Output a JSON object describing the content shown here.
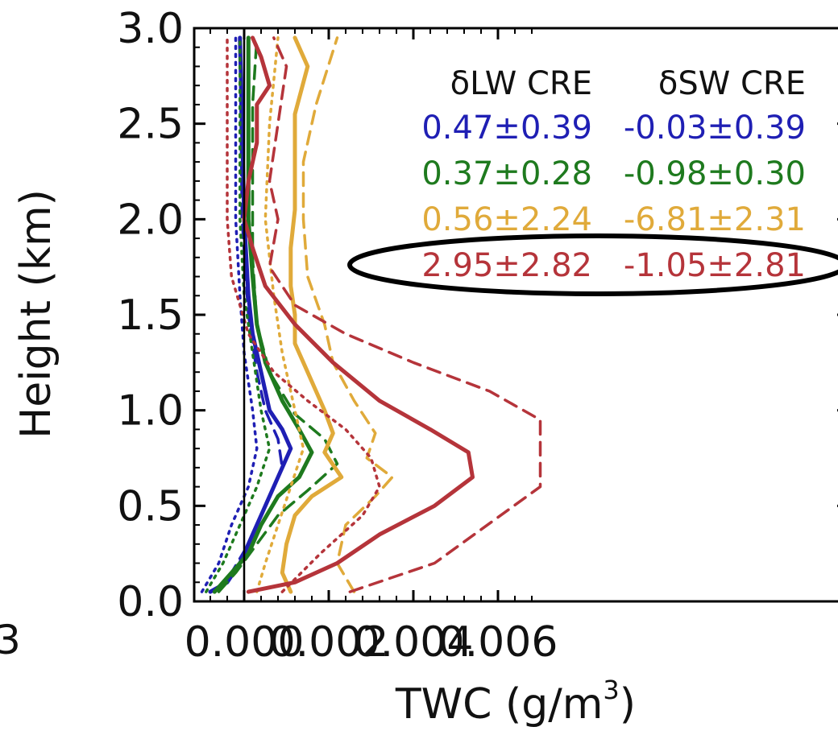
{
  "chart_data": {
    "type": "line",
    "xlabel": "TWC (g/m",
    "xlabel_sup": "3",
    "xlabel_tail": ")",
    "ylabel": "Height (km)",
    "xlim": [
      -0.0012,
      0.007
    ],
    "ylim": [
      0.0,
      3.0
    ],
    "x_ticks": [
      0.0,
      0.002,
      0.004,
      0.006
    ],
    "x_tick_labels": [
      "0.000",
      "0.002",
      "0.004",
      "0.006"
    ],
    "y_ticks": [
      0.0,
      0.5,
      1.0,
      1.5,
      2.0,
      2.5,
      3.0
    ],
    "y_tick_labels": [
      "0.0",
      "0.5",
      "1.0",
      "1.5",
      "2.0",
      "2.5",
      "3.0"
    ],
    "edge_label": "3",
    "grid": false,
    "zero_line": true,
    "table": {
      "headers": [
        "δLW CRE",
        "δSW CRE"
      ],
      "rows": [
        {
          "lw": "0.47±0.39",
          "sw": "-0.03±0.39",
          "color": "#1f1fb4"
        },
        {
          "lw": "0.37±0.28",
          "sw": "-0.98±0.30",
          "color": "#1e7a1e"
        },
        {
          "lw": "0.56±2.24",
          "sw": "-6.81±2.31",
          "color": "#e0aa3a"
        },
        {
          "lw": "2.95±2.82",
          "sw": "-1.05±2.81",
          "color": "#b5343a"
        }
      ],
      "highlight_row": 3
    },
    "series": [
      {
        "color": "#1f1fb4",
        "style": "solid",
        "points": [
          [
            -0.0008,
            0.05
          ],
          [
            -0.0004,
            0.1
          ],
          [
            -0.0001,
            0.2
          ],
          [
            0.0002,
            0.35
          ],
          [
            0.0005,
            0.5
          ],
          [
            0.0008,
            0.65
          ],
          [
            0.0011,
            0.8
          ],
          [
            0.0009,
            0.9
          ],
          [
            0.0006,
            1.0
          ],
          [
            0.0004,
            1.2
          ],
          [
            0.0002,
            1.4
          ],
          [
            0.0001,
            1.6
          ],
          [
            0.0,
            2.0
          ],
          [
            -5e-05,
            2.5
          ],
          [
            -0.0001,
            2.95
          ]
        ]
      },
      {
        "color": "#1f1fb4",
        "style": "dashed",
        "points": [
          [
            -0.0007,
            0.05
          ],
          [
            -0.0003,
            0.15
          ],
          [
            0.0001,
            0.3
          ],
          [
            0.0004,
            0.45
          ],
          [
            0.0007,
            0.6
          ],
          [
            0.0009,
            0.7
          ],
          [
            0.0008,
            0.85
          ],
          [
            0.0005,
            1.0
          ],
          [
            0.0003,
            1.2
          ],
          [
            0.0001,
            1.5
          ],
          [
            -5e-05,
            2.0
          ],
          [
            -0.0001,
            2.95
          ]
        ]
      },
      {
        "color": "#1f1fb4",
        "style": "dotted",
        "points": [
          [
            -0.001,
            0.05
          ],
          [
            -0.0006,
            0.2
          ],
          [
            -0.0003,
            0.4
          ],
          [
            0.0001,
            0.6
          ],
          [
            0.0003,
            0.8
          ],
          [
            0.0002,
            1.0
          ],
          [
            0.0,
            1.3
          ],
          [
            -0.0001,
            1.6
          ],
          [
            -0.0002,
            2.0
          ],
          [
            -0.0002,
            2.95
          ]
        ]
      },
      {
        "color": "#1e7a1e",
        "style": "solid",
        "points": [
          [
            -0.0007,
            0.05
          ],
          [
            -0.0003,
            0.15
          ],
          [
            0.0001,
            0.25
          ],
          [
            0.0004,
            0.4
          ],
          [
            0.0008,
            0.55
          ],
          [
            0.0013,
            0.65
          ],
          [
            0.0016,
            0.78
          ],
          [
            0.0013,
            0.9
          ],
          [
            0.0009,
            1.05
          ],
          [
            0.0005,
            1.25
          ],
          [
            0.0003,
            1.45
          ],
          [
            0.0002,
            1.7
          ],
          [
            0.0001,
            2.0
          ],
          [
            0.0001,
            2.5
          ],
          [
            0.0001,
            2.95
          ]
        ]
      },
      {
        "color": "#1e7a1e",
        "style": "dashed",
        "points": [
          [
            -0.0006,
            0.05
          ],
          [
            -0.0002,
            0.15
          ],
          [
            0.0003,
            0.3
          ],
          [
            0.0008,
            0.45
          ],
          [
            0.0015,
            0.58
          ],
          [
            0.0022,
            0.72
          ],
          [
            0.0019,
            0.85
          ],
          [
            0.0012,
            0.98
          ],
          [
            0.0006,
            1.2
          ],
          [
            0.0003,
            1.45
          ],
          [
            0.0002,
            1.8
          ],
          [
            0.0002,
            2.2
          ],
          [
            0.0002,
            2.6
          ],
          [
            0.0003,
            2.95
          ]
        ]
      },
      {
        "color": "#1e7a1e",
        "style": "dotted",
        "points": [
          [
            -0.0009,
            0.05
          ],
          [
            -0.0005,
            0.2
          ],
          [
            -0.0001,
            0.4
          ],
          [
            0.0003,
            0.6
          ],
          [
            0.0006,
            0.8
          ],
          [
            0.0004,
            1.0
          ],
          [
            0.0002,
            1.3
          ],
          [
            0.0,
            1.6
          ],
          [
            -0.0001,
            2.0
          ],
          [
            -0.0001,
            2.95
          ]
        ]
      },
      {
        "color": "#e0aa3a",
        "style": "solid",
        "points": [
          [
            0.0011,
            0.05
          ],
          [
            0.0009,
            0.15
          ],
          [
            0.001,
            0.3
          ],
          [
            0.0012,
            0.45
          ],
          [
            0.0016,
            0.55
          ],
          [
            0.0023,
            0.65
          ],
          [
            0.0019,
            0.78
          ],
          [
            0.0021,
            0.88
          ],
          [
            0.0019,
            1.0
          ],
          [
            0.0015,
            1.2
          ],
          [
            0.0012,
            1.35
          ],
          [
            0.0012,
            1.5
          ],
          [
            0.0011,
            1.65
          ],
          [
            0.0011,
            1.85
          ],
          [
            0.0012,
            2.05
          ],
          [
            0.0012,
            2.3
          ],
          [
            0.0012,
            2.55
          ],
          [
            0.0015,
            2.8
          ],
          [
            0.0012,
            2.95
          ]
        ]
      },
      {
        "color": "#e0aa3a",
        "style": "dashed",
        "points": [
          [
            0.0026,
            0.05
          ],
          [
            0.0022,
            0.2
          ],
          [
            0.0024,
            0.4
          ],
          [
            0.0031,
            0.55
          ],
          [
            0.0035,
            0.65
          ],
          [
            0.0029,
            0.75
          ],
          [
            0.0031,
            0.88
          ],
          [
            0.0026,
            1.05
          ],
          [
            0.0021,
            1.25
          ],
          [
            0.0019,
            1.45
          ],
          [
            0.0015,
            1.7
          ],
          [
            0.0014,
            2.0
          ],
          [
            0.0014,
            2.3
          ],
          [
            0.0017,
            2.6
          ],
          [
            0.0022,
            2.95
          ]
        ]
      },
      {
        "color": "#e0aa3a",
        "style": "dotted",
        "points": [
          [
            0.0003,
            0.05
          ],
          [
            0.0005,
            0.2
          ],
          [
            0.0008,
            0.4
          ],
          [
            0.0011,
            0.6
          ],
          [
            0.0014,
            0.8
          ],
          [
            0.0012,
            1.0
          ],
          [
            0.0009,
            1.3
          ],
          [
            0.0007,
            1.6
          ],
          [
            0.0005,
            2.0
          ],
          [
            0.0006,
            2.5
          ],
          [
            0.0008,
            2.95
          ]
        ]
      },
      {
        "color": "#b5343a",
        "style": "solid",
        "points": [
          [
            0.0001,
            0.05
          ],
          [
            0.0012,
            0.1
          ],
          [
            0.0022,
            0.2
          ],
          [
            0.0032,
            0.35
          ],
          [
            0.0045,
            0.5
          ],
          [
            0.0054,
            0.65
          ],
          [
            0.0053,
            0.78
          ],
          [
            0.0044,
            0.9
          ],
          [
            0.0032,
            1.05
          ],
          [
            0.0021,
            1.25
          ],
          [
            0.0012,
            1.45
          ],
          [
            0.0005,
            1.65
          ],
          [
            0.0002,
            1.85
          ],
          [
            0.0,
            2.0
          ],
          [
            0.0001,
            2.2
          ],
          [
            0.0003,
            2.4
          ],
          [
            0.0003,
            2.6
          ],
          [
            0.0006,
            2.7
          ],
          [
            0.0004,
            2.85
          ],
          [
            0.0002,
            2.95
          ]
        ]
      },
      {
        "color": "#b5343a",
        "style": "dashed",
        "points": [
          [
            0.0025,
            0.05
          ],
          [
            0.0045,
            0.2
          ],
          [
            0.007,
            0.6
          ],
          [
            0.007,
            0.95
          ],
          [
            0.0058,
            1.1
          ],
          [
            0.004,
            1.25
          ],
          [
            0.0024,
            1.4
          ],
          [
            0.0012,
            1.55
          ],
          [
            0.0006,
            1.75
          ],
          [
            0.0008,
            2.0
          ],
          [
            0.0006,
            2.2
          ],
          [
            0.0008,
            2.5
          ],
          [
            0.001,
            2.8
          ],
          [
            0.0007,
            2.95
          ]
        ]
      },
      {
        "color": "#b5343a",
        "style": "dotted",
        "points": [
          [
            0.0009,
            0.05
          ],
          [
            0.0018,
            0.25
          ],
          [
            0.0028,
            0.45
          ],
          [
            0.0032,
            0.6
          ],
          [
            0.003,
            0.75
          ],
          [
            0.0024,
            0.9
          ],
          [
            0.0015,
            1.05
          ],
          [
            0.0007,
            1.2
          ],
          [
            0.0001,
            1.4
          ],
          [
            -0.0003,
            1.7
          ],
          [
            -0.0004,
            2.0
          ],
          [
            -0.0004,
            2.3
          ],
          [
            -0.0004,
            2.6
          ],
          [
            -0.0004,
            2.95
          ]
        ]
      }
    ]
  }
}
